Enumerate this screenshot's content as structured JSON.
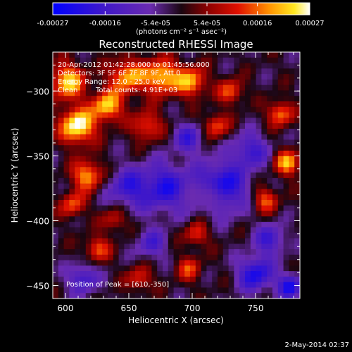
{
  "colorbar": {
    "tick_labels": [
      "-0.00027",
      "-0.00016",
      "-5.4e-05",
      "5.4e-05",
      "0.00016",
      "0.00027"
    ],
    "tick_values": [
      -0.00027,
      -0.00016,
      -5.4e-05,
      5.4e-05,
      0.00016,
      0.00027
    ],
    "range": [
      -0.00027,
      0.00027
    ],
    "unit_label": "(photons cm⁻² s⁻¹ asec⁻²)",
    "colors": [
      "#0000ff",
      "#3a1aa8",
      "#6a2bb0",
      "#2a0a14",
      "#8a0000",
      "#ff3000",
      "#ffa800",
      "#ffff30",
      "#ffffff"
    ]
  },
  "chart_data": {
    "type": "heatmap",
    "title": "Reconstructed RHESSI Image",
    "xlabel": "Heliocentric X (arcsec)",
    "ylabel": "Heliocentric Y (arcsec)",
    "xlim": [
      590,
      785
    ],
    "ylim": [
      -460,
      -270
    ],
    "x_ticks": [
      600,
      650,
      700,
      750
    ],
    "x_tick_labels": [
      "600",
      "650",
      "700",
      "750"
    ],
    "y_ticks": [
      -300,
      -350,
      -400,
      -450
    ],
    "y_tick_labels": [
      "−300",
      "−350",
      "−400",
      "−450"
    ],
    "annotations": [
      "20-Apr-2012 01:42:28.000 to 01:45:56.000",
      "Detectors: 3F 5F 6F 7F 8F 9F, Att 0",
      "Energy Range: 12.0 - 25.0 keV",
      "Clean",
      "Total counts: 4.91E+03"
    ],
    "peak_label": "Position of Peak = [610,-350]",
    "peak": [
      610,
      -350
    ],
    "grid": false
  },
  "footer": {
    "timestamp": "2-May-2014 02:37"
  }
}
